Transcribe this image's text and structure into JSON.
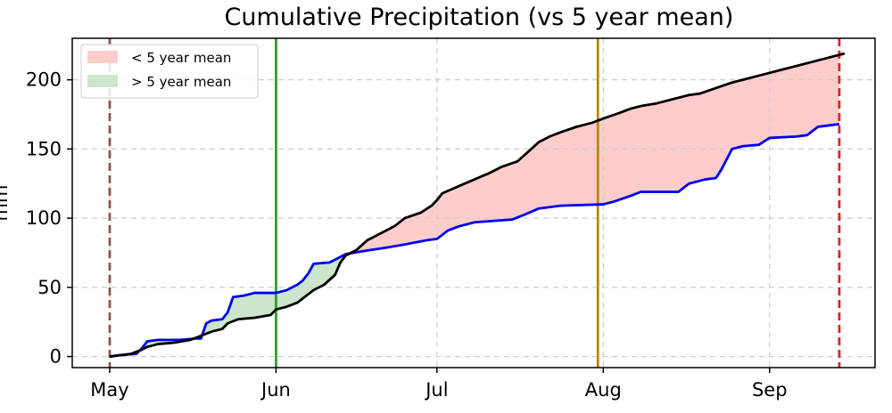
{
  "chart_data": {
    "type": "line",
    "title": "Cumulative Precipitation (vs 5 year mean)",
    "xlabel": "",
    "ylabel": "mm",
    "x_axis": {
      "type": "date",
      "range": [
        "2024-05-01",
        "2024-09-19"
      ],
      "ticks": [
        {
          "date": "2024-05-01",
          "label": "May"
        },
        {
          "date": "2024-06-01",
          "label": "Jun"
        },
        {
          "date": "2024-07-01",
          "label": "Jul"
        },
        {
          "date": "2024-08-01",
          "label": "Aug"
        },
        {
          "date": "2024-09-01",
          "label": "Sep"
        }
      ]
    },
    "ylim": [
      -8,
      230
    ],
    "y_ticks": [
      0,
      50,
      100,
      150,
      200
    ],
    "grid": true,
    "legend": {
      "placement": "top-left",
      "entries": [
        {
          "label": "< 5 year mean",
          "color": "#ffcccc"
        },
        {
          "label": "> 5 year mean",
          "color": "#cce5cc"
        }
      ]
    },
    "series": [
      {
        "color": "#0000ee",
        "points": [
          [
            "2024-05-01",
            0
          ],
          [
            "2024-05-03",
            1
          ],
          [
            "2024-05-06",
            2
          ],
          [
            "2024-05-07",
            6
          ],
          [
            "2024-05-08",
            11
          ],
          [
            "2024-05-10",
            12
          ],
          [
            "2024-05-14",
            12
          ],
          [
            "2024-05-17",
            13
          ],
          [
            "2024-05-18",
            13
          ],
          [
            "2024-05-19",
            24
          ],
          [
            "2024-05-20",
            26
          ],
          [
            "2024-05-22",
            27
          ],
          [
            "2024-05-23",
            32
          ],
          [
            "2024-05-24",
            43
          ],
          [
            "2024-05-26",
            44
          ],
          [
            "2024-05-28",
            46
          ],
          [
            "2024-06-01",
            46
          ],
          [
            "2024-06-03",
            48
          ],
          [
            "2024-06-05",
            52
          ],
          [
            "2024-06-06",
            55
          ],
          [
            "2024-06-07",
            60
          ],
          [
            "2024-06-08",
            67
          ],
          [
            "2024-06-11",
            68
          ],
          [
            "2024-06-12",
            70
          ],
          [
            "2024-06-14",
            74
          ],
          [
            "2024-06-17",
            76
          ],
          [
            "2024-06-22",
            79
          ],
          [
            "2024-06-25",
            81
          ],
          [
            "2024-06-29",
            84
          ],
          [
            "2024-07-01",
            85
          ],
          [
            "2024-07-03",
            91
          ],
          [
            "2024-07-05",
            94
          ],
          [
            "2024-07-08",
            97
          ],
          [
            "2024-07-15",
            99
          ],
          [
            "2024-07-17",
            102
          ],
          [
            "2024-07-20",
            107
          ],
          [
            "2024-07-24",
            109
          ],
          [
            "2024-08-01",
            110
          ],
          [
            "2024-08-03",
            112
          ],
          [
            "2024-08-06",
            116
          ],
          [
            "2024-08-08",
            119
          ],
          [
            "2024-08-15",
            119
          ],
          [
            "2024-08-17",
            125
          ],
          [
            "2024-08-20",
            128
          ],
          [
            "2024-08-22",
            129
          ],
          [
            "2024-08-23",
            135
          ],
          [
            "2024-08-25",
            150
          ],
          [
            "2024-08-27",
            152
          ],
          [
            "2024-08-30",
            153
          ],
          [
            "2024-09-01",
            158
          ],
          [
            "2024-09-06",
            159
          ],
          [
            "2024-09-08",
            160
          ],
          [
            "2024-09-10",
            166
          ],
          [
            "2024-09-12",
            167
          ],
          [
            "2024-09-14",
            168
          ]
        ]
      },
      {
        "color": "#000000",
        "points": [
          [
            "2024-05-01",
            0
          ],
          [
            "2024-05-03",
            1
          ],
          [
            "2024-05-05",
            2
          ],
          [
            "2024-05-07",
            5
          ],
          [
            "2024-05-08",
            7
          ],
          [
            "2024-05-10",
            9
          ],
          [
            "2024-05-13",
            10
          ],
          [
            "2024-05-16",
            12
          ],
          [
            "2024-05-18",
            15
          ],
          [
            "2024-05-20",
            18
          ],
          [
            "2024-05-22",
            20
          ],
          [
            "2024-05-23",
            24
          ],
          [
            "2024-05-25",
            27
          ],
          [
            "2024-05-28",
            28
          ],
          [
            "2024-05-31",
            30
          ],
          [
            "2024-06-01",
            34
          ],
          [
            "2024-06-03",
            36
          ],
          [
            "2024-06-05",
            39
          ],
          [
            "2024-06-06",
            42
          ],
          [
            "2024-06-08",
            48
          ],
          [
            "2024-06-10",
            52
          ],
          [
            "2024-06-12",
            59
          ],
          [
            "2024-06-13",
            68
          ],
          [
            "2024-06-14",
            73
          ],
          [
            "2024-06-16",
            77
          ],
          [
            "2024-06-18",
            84
          ],
          [
            "2024-06-21",
            90
          ],
          [
            "2024-06-23",
            94
          ],
          [
            "2024-06-25",
            100
          ],
          [
            "2024-06-28",
            104
          ],
          [
            "2024-06-30",
            109
          ],
          [
            "2024-07-01",
            113
          ],
          [
            "2024-07-02",
            118
          ],
          [
            "2024-07-05",
            123
          ],
          [
            "2024-07-08",
            128
          ],
          [
            "2024-07-11",
            133
          ],
          [
            "2024-07-13",
            137
          ],
          [
            "2024-07-16",
            141
          ],
          [
            "2024-07-18",
            148
          ],
          [
            "2024-07-20",
            155
          ],
          [
            "2024-07-22",
            159
          ],
          [
            "2024-07-24",
            162
          ],
          [
            "2024-07-27",
            166
          ],
          [
            "2024-07-30",
            169
          ],
          [
            "2024-08-01",
            172
          ],
          [
            "2024-08-04",
            176
          ],
          [
            "2024-08-06",
            179
          ],
          [
            "2024-08-08",
            181
          ],
          [
            "2024-08-11",
            183
          ],
          [
            "2024-08-14",
            186
          ],
          [
            "2024-08-17",
            189
          ],
          [
            "2024-08-19",
            190
          ],
          [
            "2024-08-22",
            194
          ],
          [
            "2024-08-25",
            198
          ],
          [
            "2024-08-28",
            201
          ],
          [
            "2024-08-31",
            204
          ],
          [
            "2024-09-03",
            207
          ],
          [
            "2024-09-06",
            210
          ],
          [
            "2024-09-09",
            213
          ],
          [
            "2024-09-11",
            215
          ],
          [
            "2024-09-14",
            218
          ],
          [
            "2024-09-15",
            219
          ]
        ]
      }
    ],
    "vertical_lines": [
      {
        "date": "2024-05-01",
        "color": "#8c564b",
        "style": "dashed"
      },
      {
        "date": "2024-06-01",
        "color": "#2ca02c",
        "style": "solid"
      },
      {
        "date": "2024-07-31",
        "color": "#b8860b",
        "style": "solid"
      },
      {
        "date": "2024-09-14",
        "color": "#d62728",
        "style": "dashed"
      }
    ],
    "fill_colors": {
      "below_mean": "#ffcccc",
      "above_mean": "#cce5cc"
    }
  }
}
